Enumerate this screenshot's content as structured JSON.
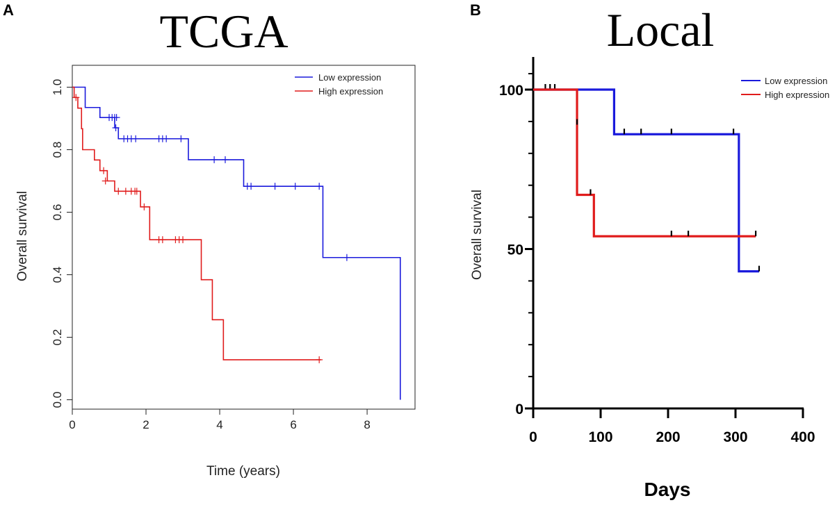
{
  "chart_data": [
    {
      "panel": "A",
      "type": "line",
      "subtype": "kaplan-meier",
      "title": "TCGA",
      "xlabel": "Time (years)",
      "ylabel": "Overall survival",
      "xlim": [
        0,
        9.3
      ],
      "ylim": [
        -0.03,
        1.07
      ],
      "xticks": [
        0,
        2,
        4,
        6,
        8
      ],
      "yticks": [
        0.0,
        0.2,
        0.4,
        0.6,
        0.8,
        1.0
      ],
      "ytick_labels": [
        "0.0",
        "0.2",
        "0.4",
        "0.6",
        "0.8",
        "1.0"
      ],
      "legend": {
        "position": "top-right",
        "entries": [
          "Low expression",
          "High expression"
        ]
      },
      "series": [
        {
          "name": "Low expression",
          "color": "#1a1adc",
          "steps": [
            [
              0,
              1.0
            ],
            [
              0.35,
              0.935
            ],
            [
              0.75,
              0.903
            ],
            [
              1.15,
              0.87
            ],
            [
              1.25,
              0.835
            ],
            [
              3.15,
              0.768
            ],
            [
              4.65,
              0.683
            ],
            [
              6.8,
              0.455
            ],
            [
              8.9,
              0.0
            ]
          ],
          "end": 8.9,
          "censored": [
            [
              1.0,
              0.903
            ],
            [
              1.08,
              0.903
            ],
            [
              1.15,
              0.903
            ],
            [
              1.2,
              0.903
            ],
            [
              1.18,
              0.87
            ],
            [
              1.4,
              0.835
            ],
            [
              1.5,
              0.835
            ],
            [
              1.6,
              0.835
            ],
            [
              1.72,
              0.835
            ],
            [
              2.35,
              0.835
            ],
            [
              2.45,
              0.835
            ],
            [
              2.55,
              0.835
            ],
            [
              2.95,
              0.835
            ],
            [
              3.85,
              0.768
            ],
            [
              4.15,
              0.768
            ],
            [
              4.75,
              0.683
            ],
            [
              4.85,
              0.683
            ],
            [
              5.5,
              0.683
            ],
            [
              6.05,
              0.683
            ],
            [
              6.7,
              0.683
            ],
            [
              7.45,
              0.455
            ]
          ]
        },
        {
          "name": "High expression",
          "color": "#e01b1b",
          "steps": [
            [
              0,
              1.0
            ],
            [
              0.05,
              0.967
            ],
            [
              0.15,
              0.933
            ],
            [
              0.25,
              0.867
            ],
            [
              0.28,
              0.8
            ],
            [
              0.6,
              0.767
            ],
            [
              0.75,
              0.733
            ],
            [
              0.95,
              0.7
            ],
            [
              1.15,
              0.667
            ],
            [
              1.85,
              0.617
            ],
            [
              2.1,
              0.512
            ],
            [
              3.5,
              0.384
            ],
            [
              3.8,
              0.256
            ],
            [
              4.1,
              0.128
            ]
          ],
          "end": 6.75,
          "censored": [
            [
              0.1,
              0.967
            ],
            [
              0.85,
              0.733
            ],
            [
              0.9,
              0.7
            ],
            [
              1.25,
              0.667
            ],
            [
              1.45,
              0.667
            ],
            [
              1.6,
              0.667
            ],
            [
              1.7,
              0.667
            ],
            [
              1.75,
              0.667
            ],
            [
              1.95,
              0.617
            ],
            [
              2.35,
              0.512
            ],
            [
              2.45,
              0.512
            ],
            [
              2.8,
              0.512
            ],
            [
              2.9,
              0.512
            ],
            [
              3.0,
              0.512
            ],
            [
              6.7,
              0.128
            ]
          ]
        }
      ]
    },
    {
      "panel": "B",
      "type": "line",
      "subtype": "kaplan-meier",
      "title": "Local",
      "xlabel": "Days",
      "ylabel": "Overall survival",
      "xlim": [
        0,
        400
      ],
      "ylim": [
        0,
        110
      ],
      "xticks": [
        0,
        100,
        200,
        300,
        400
      ],
      "yticks": [
        0,
        50,
        100
      ],
      "minor_yticks": [
        10,
        20,
        30,
        40,
        60,
        70,
        80,
        90,
        105
      ],
      "legend": {
        "position": "top-right",
        "entries": [
          "Low expression",
          "High expression"
        ]
      },
      "series": [
        {
          "name": "Low expression",
          "color": "#1a1adc",
          "steps": [
            [
              0,
              100
            ],
            [
              120,
              86
            ],
            [
              305,
              43
            ]
          ],
          "end": 335,
          "censored": [
            [
              18,
              100
            ],
            [
              25,
              100
            ],
            [
              32,
              100
            ],
            [
              135,
              86
            ],
            [
              160,
              86
            ],
            [
              205,
              86
            ],
            [
              297,
              86
            ],
            [
              335,
              43
            ]
          ]
        },
        {
          "name": "High expression",
          "color": "#e01b1b",
          "steps": [
            [
              0,
              100
            ],
            [
              65,
              67
            ],
            [
              90,
              54
            ]
          ],
          "end": 330,
          "censored": [
            [
              65,
              89
            ],
            [
              85,
              67
            ],
            [
              205,
              54
            ],
            [
              230,
              54
            ],
            [
              330,
              54
            ]
          ]
        }
      ]
    }
  ]
}
